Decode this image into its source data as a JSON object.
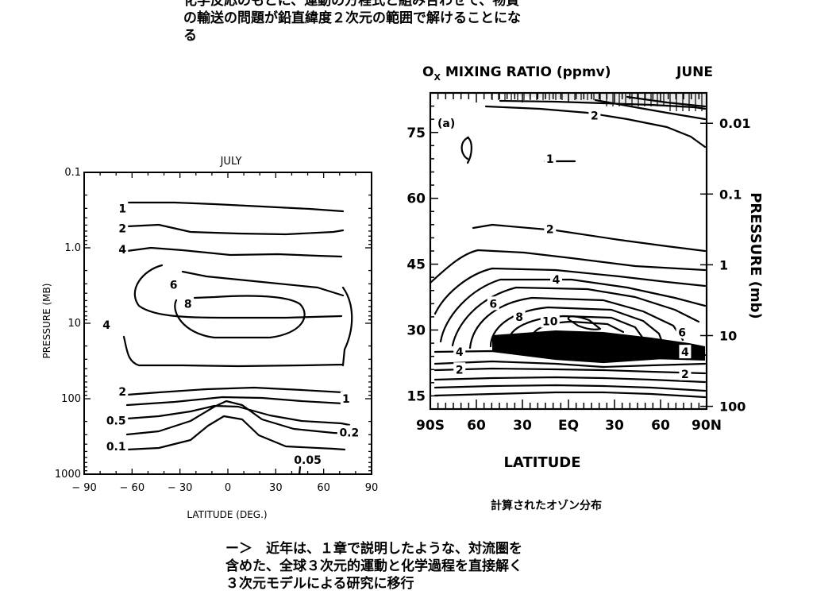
{
  "page": {
    "top_text": "化学反応のもとに、運動の方程式と組み合わせて、物質\nの輸送の問題が鉛直緯度２次元の範囲で解けることにな\nる",
    "caption": "計算されたオゾン分布",
    "bottom_text": "ー＞　近年は、１章で説明したような、対流圏を\n含めた、全球３次元的運動と化学過程を直接解く\n３次元モデルによる研究に移行"
  },
  "chart_data": [
    {
      "type": "contour",
      "title": "JULY",
      "xlabel": "LATITUDE (DEG.)",
      "ylabel": "PRESSURE (MB)",
      "x_ticks": [
        "-90",
        "-60",
        "-30",
        "0",
        "30",
        "60",
        "90"
      ],
      "y_ticks": [
        "0.1",
        "1.0",
        "10",
        "100",
        "1000"
      ],
      "y_scale": "log",
      "xlim": [
        -90,
        90
      ],
      "ylim": [
        1000,
        0.1
      ],
      "contour_levels": [
        "0.05",
        "0.1",
        "0.2",
        "0.5",
        "1",
        "2",
        "4",
        "6",
        "8"
      ],
      "contour_labels": [
        {
          "text": "1",
          "lat": -66,
          "p": 0.3
        },
        {
          "text": "2",
          "lat": -66,
          "p": 0.55
        },
        {
          "text": "4",
          "lat": -66,
          "p": 1.05
        },
        {
          "text": "6",
          "lat": -34,
          "p": 3.1
        },
        {
          "text": "8",
          "lat": -25,
          "p": 5.5
        },
        {
          "text": "4",
          "lat": -76,
          "p": 10.5
        },
        {
          "text": "2",
          "lat": -66,
          "p": 80
        },
        {
          "text": "1",
          "lat": 74,
          "p": 100
        },
        {
          "text": "0.5",
          "lat": -70,
          "p": 195
        },
        {
          "text": "0.2",
          "lat": 76,
          "p": 280
        },
        {
          "text": "0.1",
          "lat": -70,
          "p": 430
        },
        {
          "text": "0.05",
          "lat": 50,
          "p": 650
        }
      ]
    },
    {
      "type": "contour",
      "title": "OX MIXING RATIO (ppmv)",
      "title_main": "O",
      "title_sub": "X",
      "title_rest": " MIXING RATIO (ppmv)",
      "month": "JUNE",
      "panel_label": "(a)",
      "xlabel": "LATITUDE",
      "ylabel_right": "PRESSURE (mb)",
      "x_ticks": [
        "90S",
        "60",
        "30",
        "EQ",
        "30",
        "60",
        "90N"
      ],
      "y_left_ticks": [
        "15",
        "30",
        "45",
        "60",
        "75"
      ],
      "y_right_ticks": [
        "100",
        "10",
        "1",
        "0.1",
        "0.01"
      ],
      "xlim": [
        -90,
        90
      ],
      "y_left_range_km": [
        12,
        84
      ],
      "contour_labels": [
        {
          "text": "2",
          "lat": 17,
          "z": 78.8
        },
        {
          "text": "1",
          "lat": -12,
          "z": 69
        },
        {
          "text": "2",
          "lat": -12,
          "z": 53
        },
        {
          "text": "4",
          "lat": -8,
          "z": 41.5
        },
        {
          "text": "6",
          "lat": -49,
          "z": 36
        },
        {
          "text": "8",
          "lat": -32,
          "z": 33
        },
        {
          "text": "10",
          "lat": -12,
          "z": 32
        },
        {
          "text": "6",
          "lat": 74,
          "z": 29.5
        },
        {
          "text": "4",
          "lat": -71,
          "z": 25
        },
        {
          "text": "2",
          "lat": -71,
          "z": 21
        },
        {
          "text": "4",
          "lat": 76,
          "z": 25
        },
        {
          "text": "2",
          "lat": 76,
          "z": 20
        }
      ]
    }
  ]
}
